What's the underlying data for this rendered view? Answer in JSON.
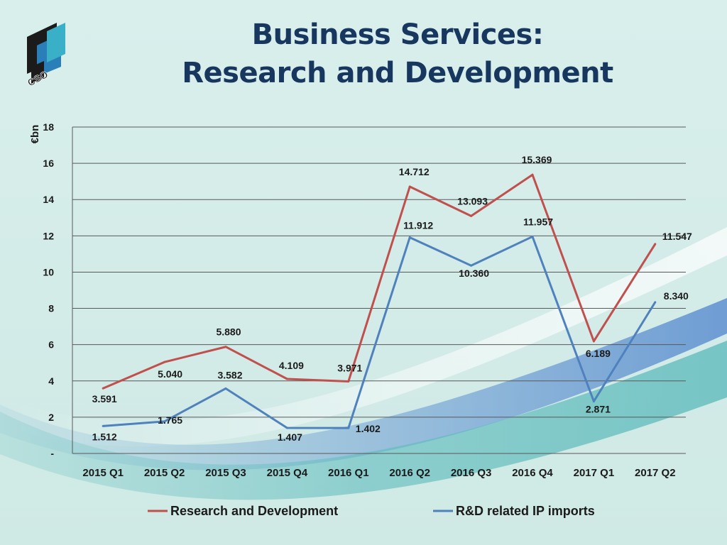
{
  "header": {
    "title_line1": "Business Services:",
    "title_line2": "Research and Development",
    "logo_text": "CSO"
  },
  "colors": {
    "background": "#d6ede9",
    "title": "#17375E",
    "series_rd": "#C0504D",
    "series_ip": "#4F81BD",
    "gridline": "#595959"
  },
  "chart_data": {
    "type": "line",
    "ylabel": "€bn",
    "ylim": [
      0,
      18
    ],
    "yticks": [
      0,
      2,
      4,
      6,
      8,
      10,
      12,
      14,
      16,
      18
    ],
    "ytick_labels": [
      "-",
      "2",
      "4",
      "6",
      "8",
      "10",
      "12",
      "14",
      "16",
      "18"
    ],
    "grid": true,
    "legend_position": "bottom",
    "categories": [
      "2015 Q1",
      "2015 Q2",
      "2015 Q3",
      "2015 Q4",
      "2016 Q1",
      "2016 Q2",
      "2016 Q3",
      "2016 Q4",
      "2017 Q1",
      "2017 Q2"
    ],
    "series": [
      {
        "name": "Research and Development",
        "color": "#C0504D",
        "values": [
          3.591,
          5.04,
          5.88,
          4.109,
          3.971,
          14.712,
          13.093,
          15.369,
          6.189,
          11.547
        ],
        "labels": [
          "3.591",
          "5.040",
          "5.880",
          "4.109",
          "3.971",
          "14.712",
          "13.093",
          "15.369",
          "6.189",
          "11.547"
        ]
      },
      {
        "name": "R&D related IP imports",
        "color": "#4F81BD",
        "values": [
          1.512,
          1.765,
          3.582,
          1.407,
          1.402,
          11.912,
          10.36,
          11.957,
          2.871,
          8.34
        ],
        "labels": [
          "1.512",
          "1.765",
          "3.582",
          "1.407",
          "1.402",
          "11.912",
          "10.360",
          "11.957",
          "2.871",
          "8.340"
        ]
      }
    ]
  }
}
